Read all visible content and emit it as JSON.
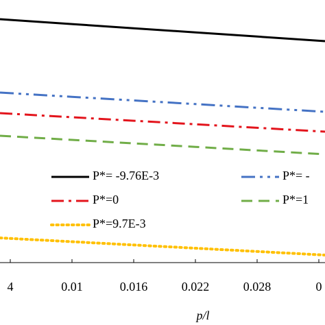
{
  "chart_data": {
    "type": "line",
    "x": [
      0.003,
      0.01,
      0.016,
      0.022,
      0.028,
      0.0346
    ],
    "xlabel": "p/l",
    "xlim": [
      0.003,
      0.0346
    ],
    "xticks": [
      {
        "value": 0.004,
        "label": "4"
      },
      0.01,
      0.016,
      0.022,
      0.028,
      {
        "value": 0.034,
        "label": "0"
      }
    ],
    "ylim": [
      0,
      383
    ],
    "series": [
      {
        "name": "P*= -9.76E-3",
        "color": "#000000",
        "dash": "solid",
        "values": [
          355,
          347.9,
          341.8,
          335.8,
          329.7,
          323
        ]
      },
      {
        "name": "P*= -",
        "color": "#4472c4",
        "dash": "dashdotdot",
        "values": [
          248,
          241.8,
          236.5,
          231.2,
          225.8,
          220
        ]
      },
      {
        "name": "P*=0",
        "color": "#e3141c",
        "dash": "dashdot",
        "values": [
          218,
          212,
          206.9,
          201.8,
          196.6,
          191
        ]
      },
      {
        "name": "P*=1",
        "color": "#70ad47",
        "dash": "dashed",
        "values": [
          185,
          179,
          173.9,
          168.8,
          163.6,
          158
        ]
      },
      {
        "name": "P*=9.7E-3",
        "color": "#ffc000",
        "dash": "dotted",
        "values": [
          36,
          30.5,
          25.7,
          21,
          16.2,
          11
        ]
      }
    ]
  }
}
